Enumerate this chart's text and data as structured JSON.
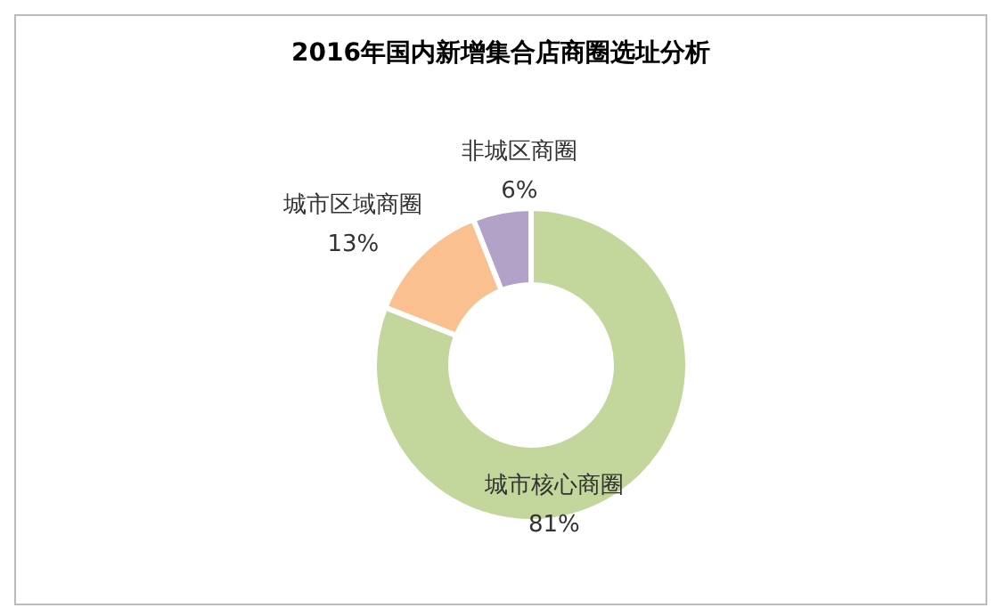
{
  "chart_data": {
    "type": "donut",
    "title": "2016年国内新增集合店商圈选址分析",
    "categories": [
      "城市核心商圈",
      "城市区域商圈",
      "非城区商圈"
    ],
    "values": [
      81,
      13,
      6
    ],
    "value_labels": [
      "81%",
      "13%",
      "6%"
    ],
    "colors": [
      "#c3d69b",
      "#fac090",
      "#b3a2c7"
    ]
  }
}
